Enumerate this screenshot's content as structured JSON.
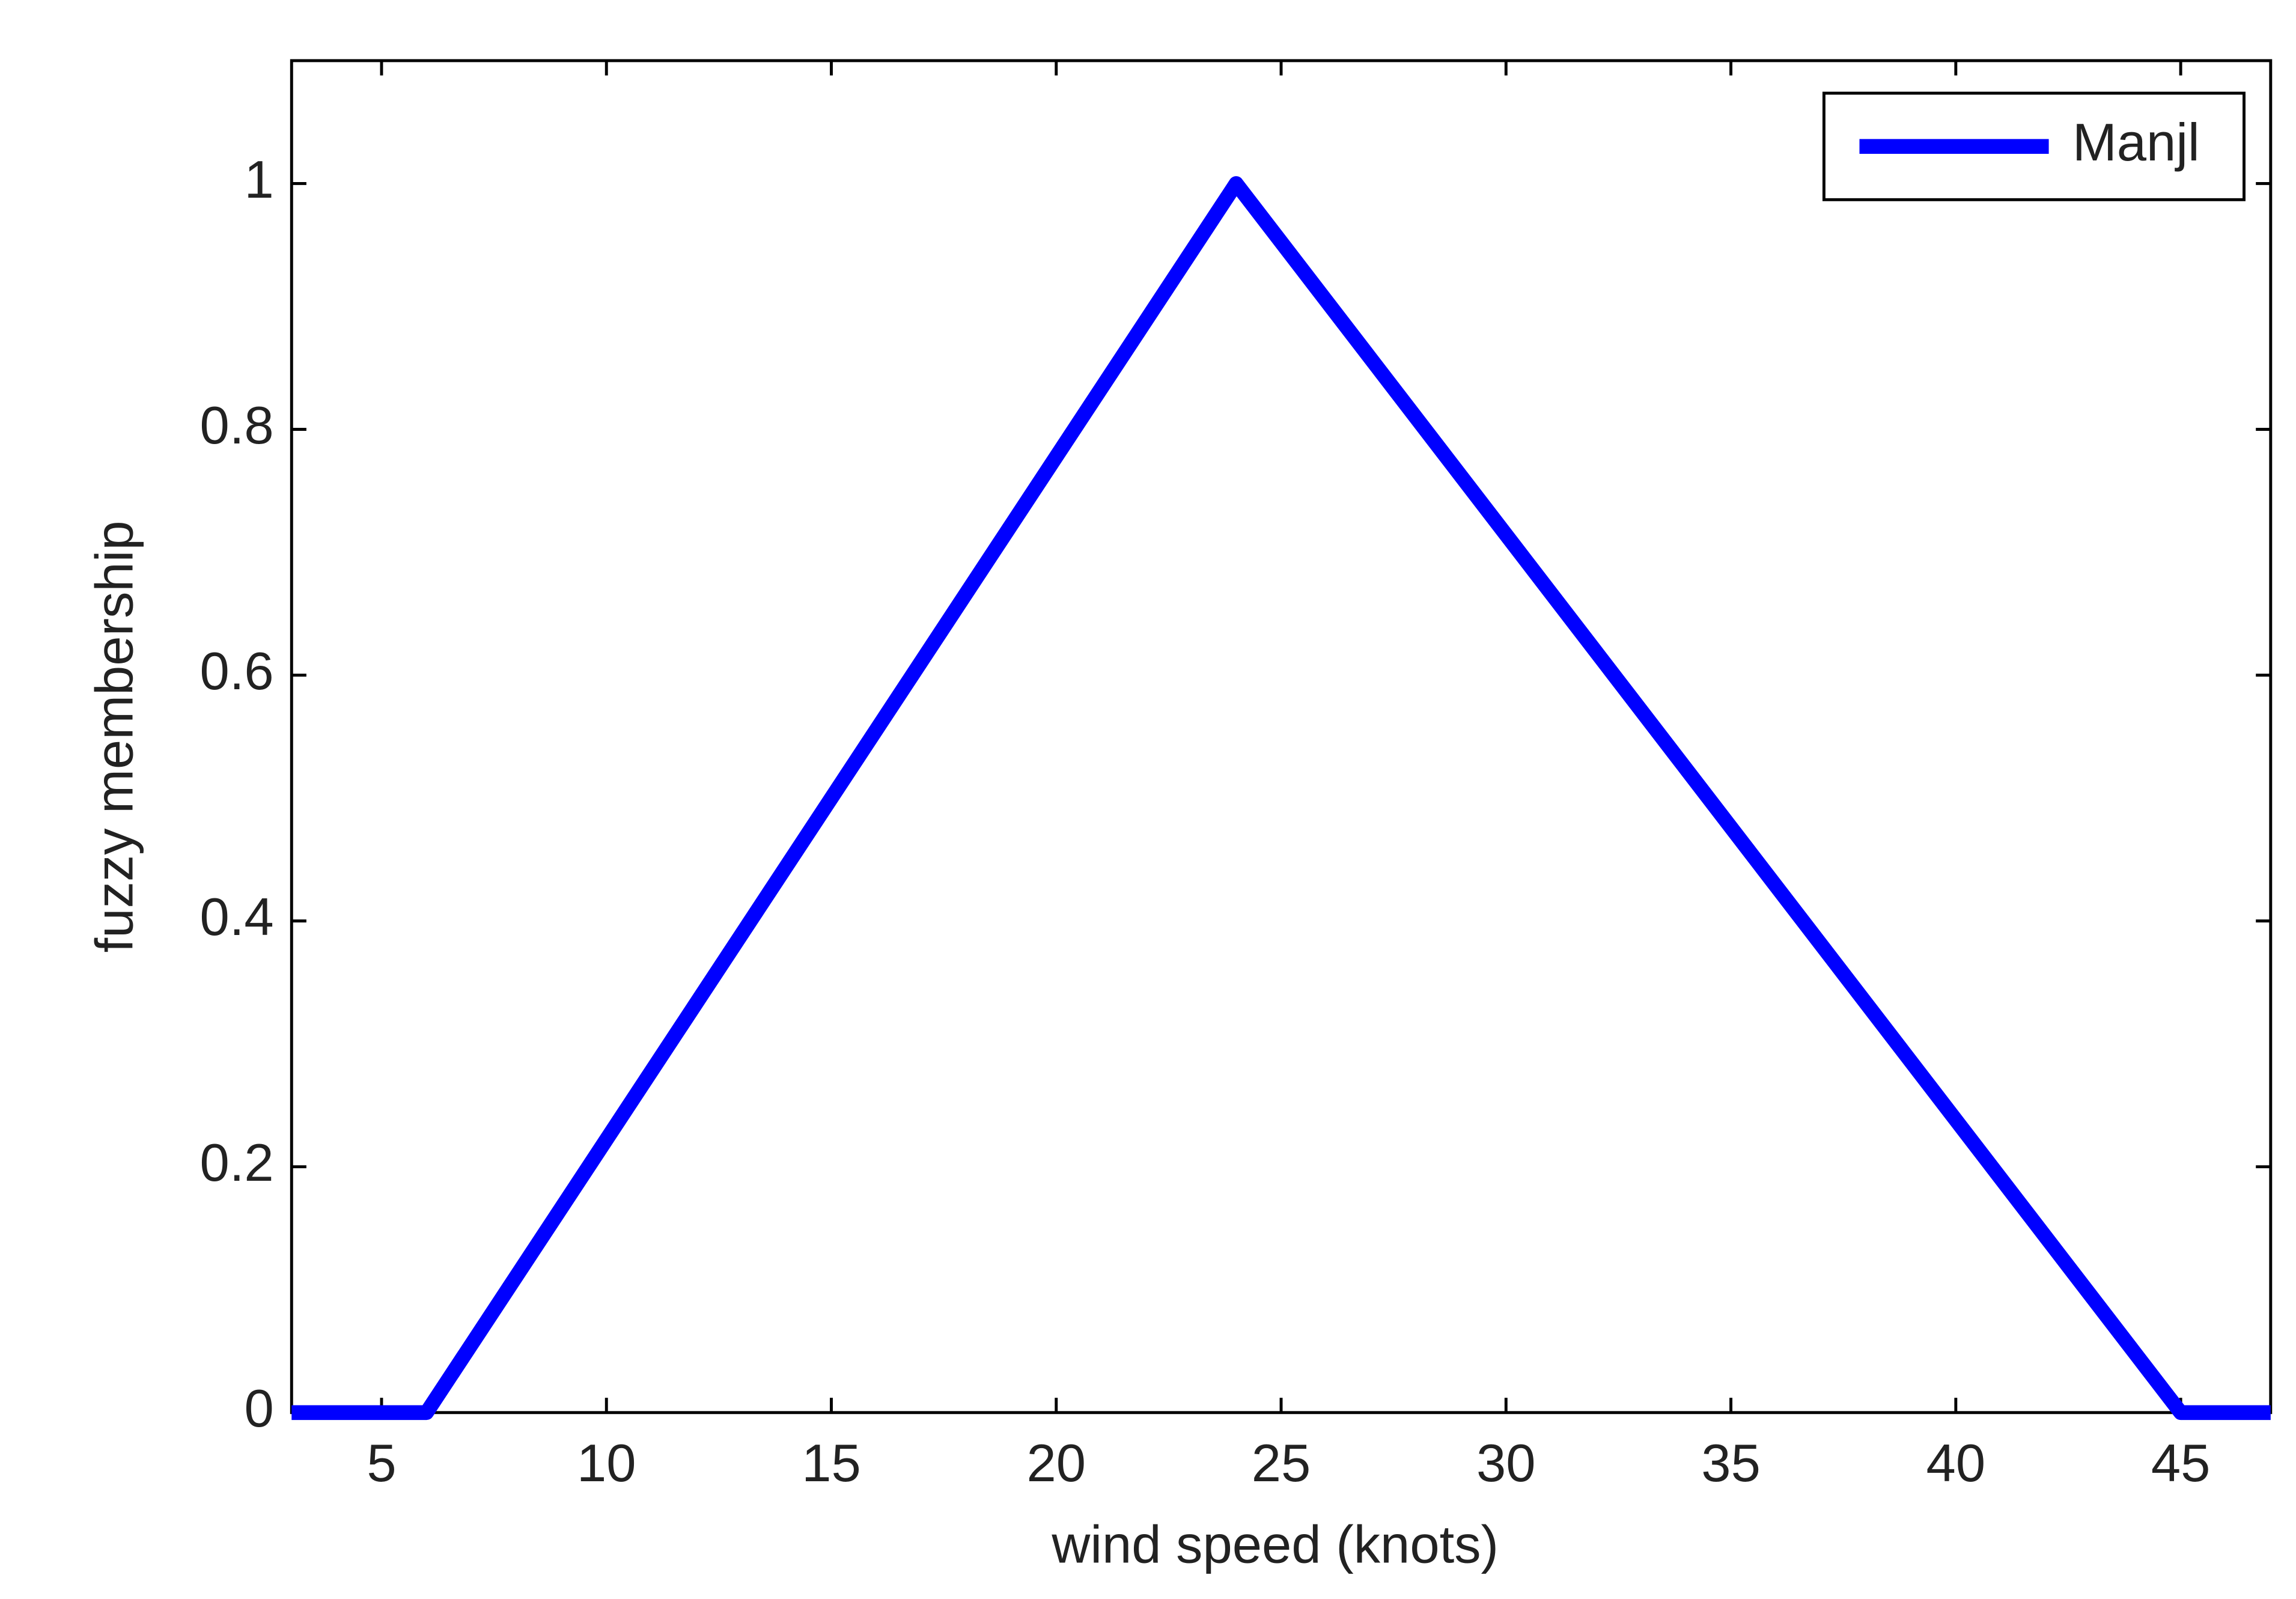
{
  "chart_data": {
    "type": "line",
    "x_label": "wind speed  (knots)",
    "y_label": "fuzzy membership",
    "x": [
      3,
      6,
      24,
      45,
      47
    ],
    "series": [
      {
        "name": "Manjl",
        "color": "#0000ff",
        "values": [
          0,
          0,
          1,
          0,
          0
        ]
      }
    ],
    "xlim": [
      3,
      47
    ],
    "xticks": [
      5,
      10,
      15,
      20,
      25,
      30,
      35,
      40,
      45
    ],
    "ylim": [
      0,
      1.1
    ],
    "yticks": [
      0,
      0.2,
      0.4,
      0.6,
      0.8,
      1
    ],
    "legend": "upper-right",
    "grid": false
  }
}
